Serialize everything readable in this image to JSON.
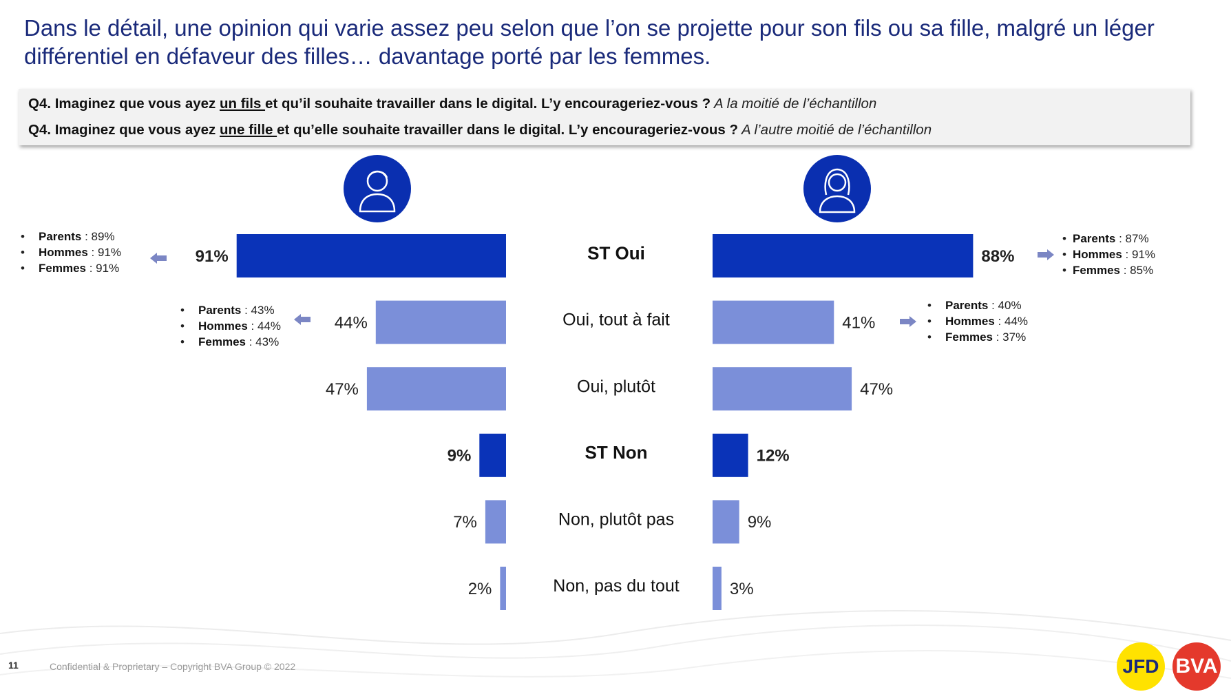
{
  "title": "Dans le détail, une opinion qui varie assez peu selon que l’on se projette pour son fils ou sa fille, malgré un léger différentiel en défaveur des filles… davantage porté par les femmes.",
  "question_box": {
    "q1": {
      "prefix": "Q4. Imaginez que vous ayez ",
      "underlined": "un fils ",
      "rest": "et qu’il souhaite travailler dans le digital. L’y encourageriez-vous ?",
      "note": " A la moitié de l’échantillon"
    },
    "q2": {
      "prefix": "Q4. Imaginez que vous ayez ",
      "underlined": "une fille ",
      "rest": "et qu’elle souhaite travailler dans le digital. L’y encourageriez-vous ?",
      "note": " A l’autre moitié de l’échantillon"
    }
  },
  "icons": {
    "left": "male-person-icon",
    "right": "female-person-icon"
  },
  "colors": {
    "dark_bar": "#0a33b8",
    "light_bar": "#7b8fd9",
    "title": "#1a2a7a",
    "icon_circle": "#0a2fb0",
    "arrow": "#7b86c4"
  },
  "chart_data": {
    "type": "bar",
    "orientation": "horizontal-butterfly",
    "categories": [
      "ST Oui",
      "Oui, tout à fait",
      "Oui, plutôt",
      "ST Non",
      "Non, plutôt pas",
      "Non, pas du tout"
    ],
    "category_bold": [
      true,
      false,
      false,
      true,
      false,
      false
    ],
    "series": [
      {
        "values": [
          91,
          44,
          47,
          9,
          7,
          2
        ],
        "labels": [
          "91%",
          "44%",
          "47%",
          "9%",
          "7%",
          "2%"
        ]
      },
      {
        "values": [
          88,
          41,
          47,
          12,
          9,
          3
        ],
        "labels": [
          "88%",
          "41%",
          "47%",
          "12%",
          "9%",
          "3%"
        ]
      }
    ],
    "value_unit": "%"
  },
  "breakdowns": {
    "fils_st_oui": [
      {
        "label": "Parents",
        "sep": " : ",
        "value": "89%"
      },
      {
        "label": "Hommes",
        "sep": " : ",
        "value": "91%"
      },
      {
        "label": "Femmes",
        "sep": "  : ",
        "value": "91%"
      }
    ],
    "fils_tout_a_fait": [
      {
        "label": "Parents",
        "sep": " : ",
        "value": "43%"
      },
      {
        "label": "Hommes",
        "sep": " : ",
        "value": "44%"
      },
      {
        "label": "Femmes",
        "sep": "  : ",
        "value": "43%"
      }
    ],
    "fille_st_oui": [
      {
        "label": "Parents",
        "sep": " : ",
        "value": "87%"
      },
      {
        "label": "Hommes",
        "sep": " : ",
        "value": "91%"
      },
      {
        "label": "Femmes",
        "sep": "  : ",
        "value": "85%"
      }
    ],
    "fille_tout_a_fait": [
      {
        "label": "Parents",
        "sep": " : ",
        "value": "40%"
      },
      {
        "label": "Hommes",
        "sep": " : ",
        "value": "44%"
      },
      {
        "label": "Femmes",
        "sep": "  : ",
        "value": "37%"
      }
    ]
  },
  "footer": {
    "page_number": "11",
    "confidential": "Confidential & Proprietary – Copyright BVA Group ©  2022",
    "logo_left": "JFD",
    "logo_right": "BVA"
  }
}
